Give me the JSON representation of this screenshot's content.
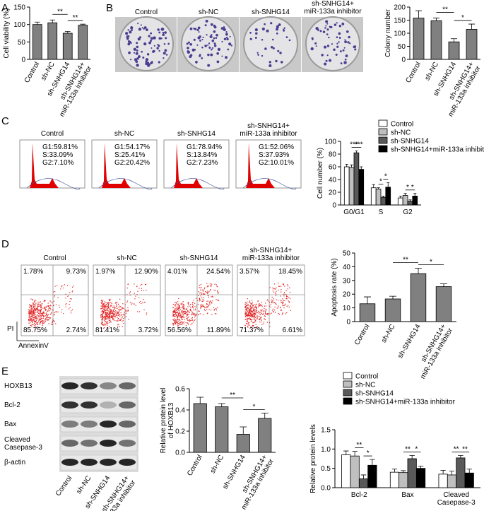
{
  "panels": [
    "A",
    "B",
    "C",
    "D",
    "E"
  ],
  "colony": {
    "labels": [
      "Control",
      "sh-NC",
      "sh-SNHG14",
      "sh-SNHG14+\nmiR-133a inhibitor"
    ]
  },
  "cell_cycle": [
    {
      "name": "Control",
      "lines": [
        "G1:59.81%",
        "S:33.09%",
        "G2:7.10%"
      ]
    },
    {
      "name": "sh-NC",
      "lines": [
        "G1:54.17%",
        "S:25.41%",
        "G2:20.42%"
      ]
    },
    {
      "name": "sh-SNHG14",
      "lines": [
        "G1:78.94%",
        "S:13.84%",
        "G2:7.23%"
      ]
    },
    {
      "name": "sh-SNHG14+\nmiR-133a inhibitor",
      "lines": [
        "G1:52.06%",
        "S:37.93%",
        "G2:10.01%"
      ]
    }
  ],
  "flow": {
    "ylabel": "PI",
    "xlabel": "AnnexinV",
    "plots": [
      {
        "name": "Control",
        "quadrants": [
          "1.78%",
          "9.73%",
          "85.75%",
          "2.74%"
        ]
      },
      {
        "name": "sh-NC",
        "quadrants": [
          "1.97%",
          "12.90%",
          "81.41%",
          "3.72%"
        ]
      },
      {
        "name": "sh-SNHG14",
        "quadrants": [
          "4.01%",
          "24.54%",
          "56.56%",
          "11.89%"
        ]
      },
      {
        "name": "sh-SNHG14+\nmiR-133a inhibitor",
        "quadrants": [
          "3.57%",
          "18.45%",
          "71.37%",
          "6.61%"
        ]
      }
    ]
  },
  "blot": {
    "rows": [
      "HOXB13",
      "Bcl-2",
      "Bax",
      "Cleaved\nCasepase-3",
      "β-actin"
    ],
    "lanes": [
      "Control",
      "sh-NC",
      "sh-SNHG14",
      "sh-SNHG14+\nmiR-133a inhibitor"
    ]
  },
  "chart_data": [
    {
      "type": "bar",
      "ylabel": "Cell viability (%)",
      "categories": [
        "Control",
        "sh-NC",
        "sh-SNHG14",
        "sh-SNHG14+\nmiR-133a inhibitor"
      ],
      "values": [
        100,
        105,
        75,
        98
      ],
      "errors": [
        7,
        8,
        5,
        3
      ],
      "color": "#808080",
      "ylim": [
        0,
        150
      ],
      "yticks": [
        0,
        50,
        100,
        150
      ],
      "annotations": [
        {
          "text": "**",
          "from": 1,
          "to": 2
        },
        {
          "text": "**",
          "from": 2,
          "to": 3
        }
      ]
    },
    {
      "type": "bar",
      "ylabel": "Colony number",
      "categories": [
        "Control",
        "sh-NC",
        "sh-SNHG14",
        "sh-SNHG14+\nmiR-133a inhibitor"
      ],
      "values": [
        158,
        148,
        67,
        115
      ],
      "errors": [
        28,
        10,
        12,
        20
      ],
      "color": "#808080",
      "ylim": [
        0,
        200
      ],
      "yticks": [
        0,
        50,
        100,
        150,
        200
      ],
      "annotations": [
        {
          "text": "**",
          "from": 1,
          "to": 2
        },
        {
          "text": "*",
          "from": 2,
          "to": 3
        }
      ]
    },
    {
      "type": "grouped_bar",
      "ylabel": "Cell number (%)",
      "categories": [
        "G0/G1",
        "S",
        "G2"
      ],
      "legend": "upper right",
      "series": [
        {
          "name": "Control",
          "color": "#ffffff",
          "values": [
            60,
            27,
            11
          ],
          "errors": [
            4,
            5,
            3
          ]
        },
        {
          "name": "sh-NC",
          "color": "#bfbfbf",
          "values": [
            59,
            25,
            15
          ],
          "errors": [
            4,
            2,
            3
          ]
        },
        {
          "name": "sh-SNHG14",
          "color": "#595959",
          "values": [
            82,
            12,
            6
          ],
          "errors": [
            3,
            2,
            2
          ]
        },
        {
          "name": "sh-SNHG14+miR-133a inhibitor",
          "color": "#000000",
          "values": [
            56,
            28,
            14
          ],
          "errors": [
            4,
            7,
            4
          ]
        }
      ],
      "ylim": [
        0,
        100
      ],
      "yticks": [
        0,
        20,
        40,
        60,
        80,
        100
      ],
      "annotations": [
        {
          "text": "***",
          "group": 0,
          "from": 1,
          "to": 2
        },
        {
          "text": "***",
          "group": 0,
          "from": 2,
          "to": 3
        },
        {
          "text": "*",
          "group": 1,
          "from": 1,
          "to": 2
        },
        {
          "text": "*",
          "group": 1,
          "from": 2,
          "to": 3
        },
        {
          "text": "*",
          "group": 2,
          "from": 1,
          "to": 2
        },
        {
          "text": "*",
          "group": 2,
          "from": 2,
          "to": 3
        }
      ]
    },
    {
      "type": "bar",
      "ylabel": "Apoptosis rate (%)",
      "categories": [
        "Control",
        "sh-NC",
        "sh-SNHG14",
        "sh-SNHG14+\nmiR-133a inhibitor"
      ],
      "values": [
        13,
        16.5,
        35,
        25.5
      ],
      "errors": [
        5,
        2,
        4,
        2
      ],
      "color": "#808080",
      "ylim": [
        0,
        50
      ],
      "yticks": [
        0,
        10,
        20,
        30,
        40,
        50
      ],
      "annotations": [
        {
          "text": "**",
          "from": 1,
          "to": 2
        },
        {
          "text": "*",
          "from": 2,
          "to": 3
        }
      ]
    },
    {
      "type": "bar",
      "ylabel": "Relative protein level\nof HOXB13",
      "categories": [
        "Control",
        "sh-NC",
        "sh-SNHG14",
        "sh-SNHG14+\nmiR-133a inhibitor"
      ],
      "values": [
        0.46,
        0.43,
        0.17,
        0.32
      ],
      "errors": [
        0.06,
        0.03,
        0.07,
        0.05
      ],
      "color": "#808080",
      "ylim": [
        0,
        0.6
      ],
      "yticks": [
        {
          "value": 0,
          "label": "0.0"
        },
        0.2,
        0.4,
        0.6
      ],
      "annotations": [
        {
          "text": "**",
          "from": 1,
          "to": 2
        },
        {
          "text": "*",
          "from": 2,
          "to": 3
        }
      ]
    },
    {
      "type": "grouped_bar",
      "ylabel": "Relative protein levels",
      "categories": [
        "Bcl-2",
        "Bax",
        "Cleaved\nCasepase-3"
      ],
      "legend": "upper right",
      "series": [
        {
          "name": "Control",
          "color": "#ffffff",
          "values": [
            0.85,
            0.4,
            0.35
          ],
          "errors": [
            0.1,
            0.08,
            0.1
          ]
        },
        {
          "name": "sh-NC",
          "color": "#bfbfbf",
          "values": [
            0.82,
            0.39,
            0.33
          ],
          "errors": [
            0.12,
            0.05,
            0.1
          ]
        },
        {
          "name": "sh-SNHG14",
          "color": "#595959",
          "values": [
            0.23,
            0.75,
            0.77
          ],
          "errors": [
            0.1,
            0.08,
            0.06
          ]
        },
        {
          "name": "sh-SNHG14+miR-133a inhibitor",
          "color": "#000000",
          "values": [
            0.58,
            0.5,
            0.38
          ],
          "errors": [
            0.15,
            0.06,
            0.1
          ]
        }
      ],
      "ylim": [
        0,
        1.5
      ],
      "yticks": [
        {
          "value": 0,
          "label": "0.0"
        },
        0.5,
        {
          "value": 1,
          "label": "1.0"
        },
        1.5
      ],
      "annotations": [
        {
          "text": "**",
          "group": 0,
          "from": 1,
          "to": 2
        },
        {
          "text": "*",
          "group": 0,
          "from": 2,
          "to": 3
        },
        {
          "text": "**",
          "group": 1,
          "from": 1,
          "to": 2
        },
        {
          "text": "*",
          "group": 1,
          "from": 2,
          "to": 3
        },
        {
          "text": "**",
          "group": 2,
          "from": 1,
          "to": 2
        },
        {
          "text": "**",
          "group": 2,
          "from": 2,
          "to": 3
        }
      ]
    }
  ]
}
